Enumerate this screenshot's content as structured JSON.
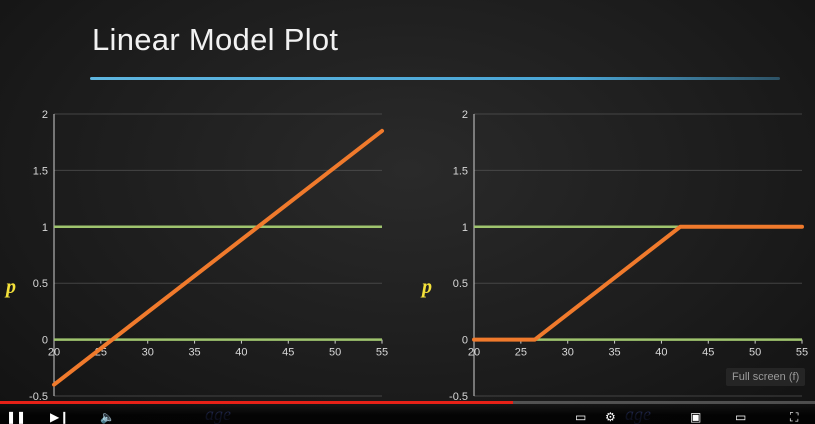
{
  "slide": {
    "title": "Linear Model Plot"
  },
  "chart_data": [
    {
      "type": "line",
      "xlabel": "age",
      "ylabel": "p",
      "xlim": [
        20,
        55
      ],
      "ylim": [
        -0.5,
        2
      ],
      "x_ticks": [
        "20",
        "25",
        "30",
        "35",
        "40",
        "45",
        "50",
        "55"
      ],
      "y_ticks": [
        "-0.5",
        "0",
        "0.5",
        "1",
        "1.5",
        "2"
      ],
      "reference_lines": [
        0,
        1
      ],
      "series": [
        {
          "x": [
            20,
            55
          ],
          "y": [
            -0.4,
            1.85
          ],
          "color": "#f07a2c"
        }
      ]
    },
    {
      "type": "line",
      "xlabel": "age",
      "ylabel": "p",
      "xlim": [
        20,
        55
      ],
      "ylim": [
        -0.5,
        2
      ],
      "x_ticks": [
        "20",
        "25",
        "30",
        "35",
        "40",
        "45",
        "50",
        "55"
      ],
      "y_ticks": [
        "-0.5",
        "0",
        "0.5",
        "1",
        "1.5",
        "2"
      ],
      "reference_lines": [
        0,
        1
      ],
      "series": [
        {
          "x": [
            20,
            26.5,
            42,
            55
          ],
          "y": [
            0,
            0,
            1,
            1
          ],
          "color": "#f07a2c"
        }
      ]
    }
  ],
  "colors": {
    "reference_line": "#9fc46e",
    "series": "#f07a2c",
    "grid": "#555555",
    "axis": "#cfcfcf"
  },
  "player": {
    "progress": 0.63,
    "tooltip": "Full screen (f)",
    "icons": [
      "pause-icon",
      "next-icon",
      "volume-icon",
      "captions-icon",
      "settings-icon",
      "miniplayer-icon",
      "theater-icon",
      "fullscreen-icon"
    ]
  }
}
